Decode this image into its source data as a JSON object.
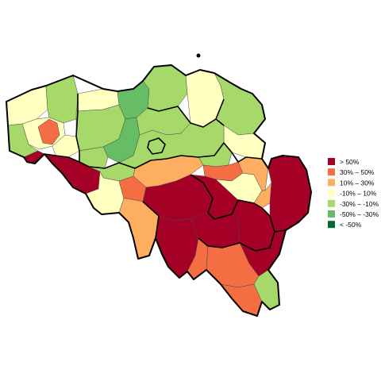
{
  "colors": {
    "c_gt50": "#a50026",
    "c_30_50": "#f46d43",
    "c_10_30": "#fdae61",
    "c_m10_10": "#ffffbf",
    "c_m30_m10": "#a6d96a",
    "c_m50_m30": "#66bd63",
    "c_lt_m50": "#006837"
  },
  "legend": {
    "items": [
      {
        "label": "> 50%",
        "color": "#a50026"
      },
      {
        "label": "30%  –  50%",
        "color": "#f46d43"
      },
      {
        "label": "10%  –  30%",
        "color": "#fdae61"
      },
      {
        "label": "-10%  –  10%",
        "color": "#ffffbf"
      },
      {
        "label": "-30%  –  -10%",
        "color": "#a6d96a"
      },
      {
        "label": "-50%  –  -30%",
        "color": "#66bd63"
      },
      {
        "label": "< -50%",
        "color": "#006837"
      }
    ]
  }
}
